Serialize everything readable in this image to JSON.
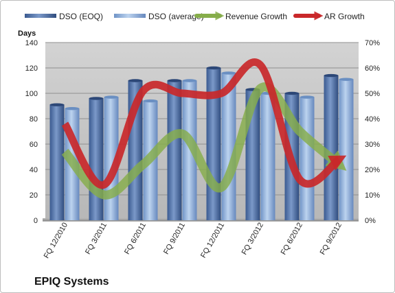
{
  "chart_data": {
    "type": "bar",
    "title": "EPIQ Systems",
    "ylabel": "Days",
    "ylim": [
      0,
      140
    ],
    "y_ticks": [
      "0",
      "20",
      "40",
      "60",
      "80",
      "100",
      "120",
      "140"
    ],
    "y2lim": [
      0,
      0.7
    ],
    "y2_ticks": [
      "0%",
      "10%",
      "20%",
      "30%",
      "40%",
      "50%",
      "60%",
      "70%"
    ],
    "grid": true,
    "legend_position": "top",
    "categories": [
      "FQ 12/2010",
      "FQ 3/2011",
      "FQ 6/2011",
      "FQ 9/2011",
      "FQ 12/2011",
      "FQ 3/2012",
      "FQ 6/2012",
      "FQ 9/2012"
    ],
    "series": [
      {
        "name": "DSO (EOQ)",
        "kind": "bar",
        "axis": "left",
        "color": "#4f6fa8",
        "values": [
          91,
          96,
          110,
          110,
          120,
          103,
          100,
          114
        ]
      },
      {
        "name": "DSO (average)",
        "kind": "bar",
        "axis": "left",
        "color": "#8fb0dc",
        "values": [
          88,
          97,
          94,
          110,
          116,
          100,
          97,
          111
        ]
      },
      {
        "name": "Revenue Growth",
        "kind": "line",
        "axis": "right",
        "color": "#86ad4a",
        "values": [
          0.27,
          0.1,
          0.22,
          0.34,
          0.13,
          0.52,
          0.35,
          0.22
        ]
      },
      {
        "name": "AR Growth",
        "kind": "line",
        "axis": "right",
        "color": "#c9282a",
        "values": [
          0.38,
          0.14,
          0.51,
          0.5,
          0.5,
          0.61,
          0.16,
          0.24
        ]
      }
    ]
  }
}
